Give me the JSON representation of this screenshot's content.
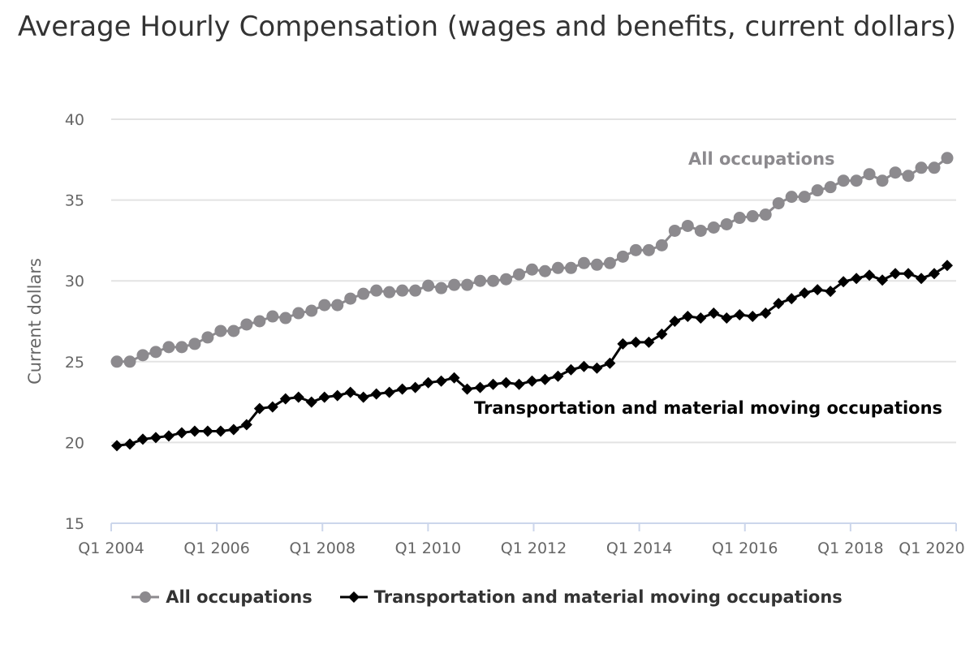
{
  "chart_data": {
    "type": "line",
    "title": "Average Hourly Compensation (wages and benefits, current dollars)",
    "ylabel": "Current dollars",
    "xlabel": "",
    "ylim": [
      15,
      40
    ],
    "yticks": [
      15,
      20,
      25,
      30,
      35,
      40
    ],
    "xtick_labels": [
      "Q1 2004",
      "Q1 2006",
      "Q1 2008",
      "Q1 2010",
      "Q1 2012",
      "Q1 2014",
      "Q1 2016",
      "Q1 2018",
      "Q1 2020"
    ],
    "grid": true,
    "legend_position": "bottom",
    "x_range": [
      "Q1 2004",
      "Q1 2020"
    ],
    "series": [
      {
        "name": "All occupations",
        "color": "#8c8a8e",
        "marker": "circle",
        "values": [
          25.0,
          25.0,
          25.4,
          25.6,
          25.9,
          25.9,
          26.1,
          26.5,
          26.9,
          26.9,
          27.3,
          27.5,
          27.8,
          27.7,
          28.0,
          28.15,
          28.5,
          28.5,
          28.9,
          29.2,
          29.4,
          29.3,
          29.4,
          29.4,
          29.7,
          29.55,
          29.75,
          29.75,
          30.0,
          30.0,
          30.1,
          30.4,
          30.7,
          30.6,
          30.8,
          30.8,
          31.1,
          31.0,
          31.1,
          31.5,
          31.9,
          31.9,
          32.2,
          33.1,
          33.4,
          33.1,
          33.3,
          33.5,
          33.9,
          34.0,
          34.1,
          34.8,
          35.2,
          35.2,
          35.6,
          35.8,
          36.2,
          36.2,
          36.6,
          36.2,
          36.7,
          36.5,
          37.0,
          37.0,
          37.6
        ]
      },
      {
        "name": "Transportation and material moving occupations",
        "color": "#000000",
        "marker": "diamond",
        "values": [
          19.8,
          19.9,
          20.2,
          20.3,
          20.4,
          20.6,
          20.7,
          20.7,
          20.7,
          20.8,
          21.1,
          22.1,
          22.2,
          22.7,
          22.8,
          22.5,
          22.8,
          22.9,
          23.1,
          22.8,
          23.0,
          23.1,
          23.3,
          23.4,
          23.7,
          23.8,
          24.0,
          23.3,
          23.4,
          23.6,
          23.7,
          23.6,
          23.8,
          23.9,
          24.1,
          24.5,
          24.7,
          24.6,
          24.9,
          26.1,
          26.2,
          26.2,
          26.7,
          27.5,
          27.8,
          27.7,
          28.0,
          27.7,
          27.9,
          27.8,
          28.0,
          28.6,
          28.9,
          29.25,
          29.45,
          29.35,
          29.95,
          30.15,
          30.35,
          30.05,
          30.45,
          30.45,
          30.15,
          30.45,
          30.95
        ]
      }
    ],
    "annotations": [
      "All occupations",
      "Transportation and material moving occupations"
    ]
  }
}
